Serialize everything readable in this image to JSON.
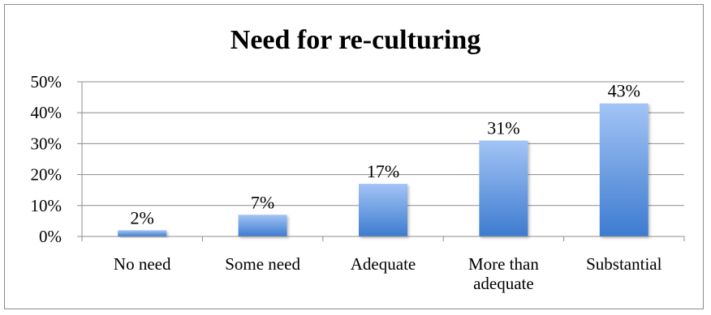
{
  "chart_data": {
    "type": "bar",
    "title": "Need for re-culturing",
    "categories": [
      [
        "No need"
      ],
      [
        "Some need"
      ],
      [
        "Adequate"
      ],
      [
        "More than",
        "adequate"
      ],
      [
        "Substantial"
      ]
    ],
    "values": [
      2,
      7,
      17,
      31,
      43
    ],
    "data_labels": [
      "2%",
      "7%",
      "17%",
      "31%",
      "43%"
    ],
    "yticks": [
      "0%",
      "10%",
      "20%",
      "30%",
      "40%",
      "50%"
    ],
    "ylim": [
      0,
      50
    ],
    "grid": true,
    "legend": "none",
    "colors": {
      "bar_top": "#a3c4f5",
      "bar_bottom": "#3d7bd0",
      "grid": "#8c8c8c",
      "axis": "#8c8c8c"
    }
  }
}
